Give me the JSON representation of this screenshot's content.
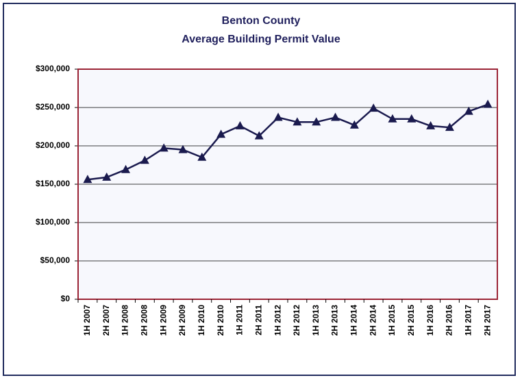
{
  "chart_data": {
    "type": "line",
    "title": "Benton County",
    "subtitle": "Average Building Permit Value",
    "categories": [
      "1H 2007",
      "2H 2007",
      "1H 2008",
      "2H 2008",
      "1H 2009",
      "2H 2009",
      "1H 2010",
      "2H 2010",
      "1H 2011",
      "2H 2011",
      "1H 2012",
      "2H 2012",
      "1H 2013",
      "2H 2013",
      "1H 2014",
      "2H 2014",
      "1H 2015",
      "2H 2015",
      "1H 2016",
      "2H 2016",
      "1H 2017",
      "2H 2017"
    ],
    "values": [
      156000,
      159000,
      169000,
      181000,
      197000,
      195000,
      185000,
      215000,
      226000,
      213000,
      237000,
      231000,
      231000,
      237000,
      227000,
      249000,
      235000,
      235000,
      226000,
      224000,
      245000,
      254000
    ],
    "color": "#1a1a4e",
    "ylim": [
      0,
      300000
    ],
    "yticks": [
      {
        "value": 0,
        "label": "$0"
      },
      {
        "value": 50000,
        "label": "$50,000"
      },
      {
        "value": 100000,
        "label": "$100,000"
      },
      {
        "value": 150000,
        "label": "$150,000"
      },
      {
        "value": 200000,
        "label": "$200,000"
      },
      {
        "value": 250000,
        "label": "$250,000"
      },
      {
        "value": 300000,
        "label": "$300,000"
      }
    ],
    "grid": true
  }
}
